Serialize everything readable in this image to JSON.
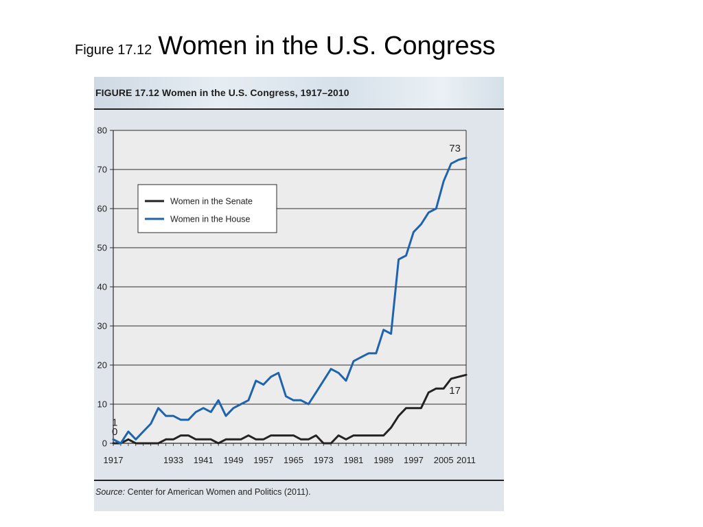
{
  "slide": {
    "title_prefix": "Figure 17.12",
    "title_main": "Women in the U.S. Congress"
  },
  "figure": {
    "heading": "FIGURE 17.12 Women in the U.S. Congress, 1917–2010",
    "source_label": "Source:",
    "source_text": " Center for American Women and Politics (2011)."
  },
  "colors": {
    "senate": "#222222",
    "house": "#1e63ad",
    "plot_background": "#ececec",
    "panel_background": "#dfe5ea"
  },
  "chart_data": {
    "type": "line",
    "title": "",
    "xlabel": "",
    "ylabel": "",
    "xlim": [
      1917,
      2011
    ],
    "ylim": [
      0,
      80
    ],
    "grid": "horizontal",
    "legend_position": "upper-left",
    "x_ticks": [
      "1917",
      "1933",
      "1941",
      "1949",
      "1957",
      "1965",
      "1973",
      "1981",
      "1989",
      "1997",
      "2005",
      "2011"
    ],
    "y_ticks": [
      "0",
      "10",
      "20",
      "30",
      "40",
      "50",
      "60",
      "70",
      "80"
    ],
    "series": [
      {
        "name": "Women in the Senate",
        "color": "#222222",
        "x": [
          1917,
          1919,
          1921,
          1923,
          1925,
          1927,
          1929,
          1931,
          1933,
          1935,
          1937,
          1939,
          1941,
          1943,
          1945,
          1947,
          1949,
          1951,
          1953,
          1955,
          1957,
          1959,
          1961,
          1963,
          1965,
          1967,
          1969,
          1971,
          1973,
          1975,
          1977,
          1979,
          1981,
          1983,
          1985,
          1987,
          1989,
          1991,
          1993,
          1995,
          1997,
          1999,
          2001,
          2003,
          2005,
          2007,
          2009,
          2011
        ],
        "y": [
          0,
          0,
          1,
          0,
          0,
          0,
          0,
          1,
          1,
          2,
          2,
          1,
          1,
          1,
          0,
          1,
          1,
          1,
          2,
          1,
          1,
          2,
          2,
          2,
          2,
          1,
          1,
          2,
          0,
          0,
          2,
          1,
          2,
          2,
          2,
          2,
          2,
          4,
          7,
          9,
          9,
          9,
          13,
          14,
          14,
          16.5,
          17,
          17.5
        ]
      },
      {
        "name": "Women in the House",
        "color": "#1e63ad",
        "x": [
          1917,
          1919,
          1921,
          1923,
          1925,
          1927,
          1929,
          1931,
          1933,
          1935,
          1937,
          1939,
          1941,
          1943,
          1945,
          1947,
          1949,
          1951,
          1953,
          1955,
          1957,
          1959,
          1961,
          1963,
          1965,
          1967,
          1969,
          1971,
          1973,
          1975,
          1977,
          1979,
          1981,
          1983,
          1985,
          1987,
          1989,
          1991,
          1993,
          1995,
          1997,
          1999,
          2001,
          2003,
          2005,
          2007,
          2009,
          2011
        ],
        "y": [
          1,
          0,
          3,
          1,
          3,
          5,
          9,
          7,
          7,
          6,
          6,
          8,
          9,
          8,
          11,
          7,
          9,
          10,
          11,
          16,
          15,
          17,
          18,
          12,
          11,
          11,
          10,
          13,
          16,
          19,
          18,
          16,
          21,
          22,
          23,
          23,
          29,
          28,
          47,
          48,
          54,
          56,
          59,
          60,
          67,
          71.5,
          72.5,
          73
        ]
      }
    ],
    "annotations": [
      {
        "text": "73",
        "x": 2008,
        "y": 73,
        "series": "Women in the House"
      },
      {
        "text": "17",
        "x": 2008,
        "y": 17,
        "series": "Women in the Senate"
      },
      {
        "text": "1",
        "x": 1917,
        "y": 1,
        "series": "Women in the House"
      },
      {
        "text": "0",
        "x": 1917,
        "y": 0,
        "series": "Women in the Senate"
      }
    ]
  }
}
